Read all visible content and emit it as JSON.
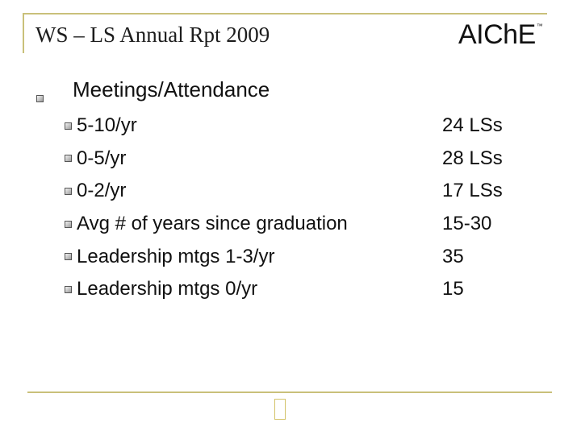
{
  "slide": {
    "title": "WS – LS Annual Rpt 2009",
    "logo": {
      "text": "AIChE",
      "mark": "™"
    },
    "heading": "Meetings/Attendance",
    "rows": [
      {
        "label": "5-10/yr",
        "value": "24 LSs"
      },
      {
        "label": "0-5/yr",
        "value": "28 LSs"
      },
      {
        "label": "0-2/yr",
        "value": "17 LSs"
      },
      {
        "label": "Avg # of years since graduation",
        "value": "15-30"
      },
      {
        "label": "Leadership mtgs 1-3/yr",
        "value": "35"
      },
      {
        "label": "Leadership mtgs 0/yr",
        "value": "15"
      }
    ],
    "accent_color": "#c9c07a"
  }
}
